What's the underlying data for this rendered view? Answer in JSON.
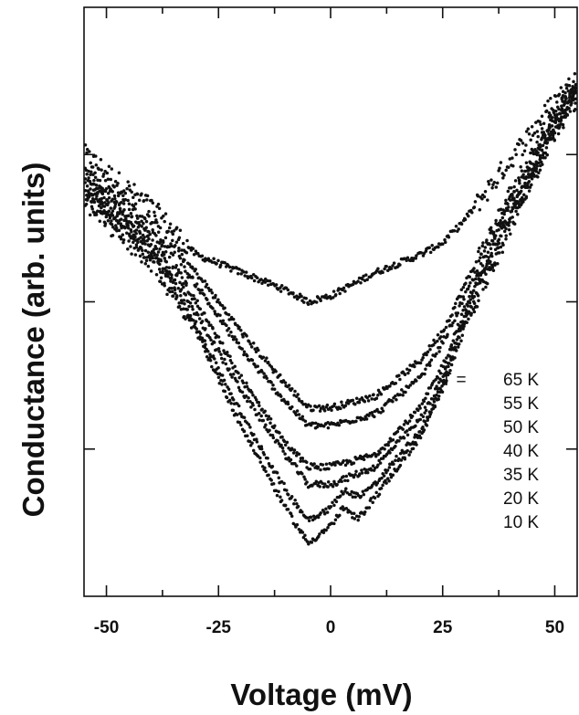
{
  "chart_data": {
    "type": "scatter",
    "xlabel": "Voltage (mV)",
    "ylabel": "Conductance (arb. units)",
    "xlim": [
      -55,
      55
    ],
    "ylim": [
      0,
      100
    ],
    "x_ticks": [
      -50,
      -25,
      0,
      25,
      50
    ],
    "x_tick_labels": [
      "-50",
      "-25",
      "0",
      "25",
      "50"
    ],
    "y_tick_labels_shown": false,
    "grid": false,
    "legend": {
      "position": "right",
      "prefix": "T  =",
      "entries": [
        "65 K",
        "55 K",
        "50 K",
        "40 K",
        "35 K",
        "20 K",
        "10 K"
      ]
    },
    "series": [
      {
        "name": "65 K",
        "x": [
          -55,
          -40,
          -30,
          -20,
          -10,
          -5,
          0,
          10,
          20,
          25,
          30,
          40,
          50,
          55
        ],
        "y": [
          75,
          66,
          58,
          55,
          52,
          50,
          51,
          55,
          58,
          60,
          64,
          74,
          84,
          88
        ]
      },
      {
        "name": "55 K",
        "x": [
          -55,
          -40,
          -30,
          -20,
          -10,
          -5,
          0,
          10,
          20,
          25,
          30,
          40,
          50,
          55
        ],
        "y": [
          72,
          63,
          55,
          45,
          36,
          32,
          32,
          34,
          40,
          45,
          53,
          68,
          82,
          88
        ]
      },
      {
        "name": "50 K",
        "x": [
          -55,
          -40,
          -30,
          -20,
          -10,
          -5,
          0,
          10,
          20,
          25,
          30,
          40,
          50,
          55
        ],
        "y": [
          71,
          62,
          53,
          42,
          33,
          29,
          29,
          31,
          37,
          43,
          51,
          67,
          81,
          87
        ]
      },
      {
        "name": "40 K",
        "x": [
          -55,
          -40,
          -30,
          -20,
          -10,
          -5,
          0,
          10,
          20,
          25,
          30,
          40,
          50,
          55
        ],
        "y": [
          70,
          60,
          50,
          37,
          26,
          22,
          22,
          24,
          32,
          39,
          49,
          66,
          80,
          86
        ]
      },
      {
        "name": "35 K",
        "x": [
          -55,
          -40,
          -30,
          -20,
          -10,
          -5,
          0,
          10,
          20,
          25,
          30,
          40,
          50,
          55
        ],
        "y": [
          69,
          59,
          48,
          35,
          24,
          19,
          19,
          22,
          30,
          37,
          48,
          65,
          80,
          86
        ]
      },
      {
        "name": "20 K",
        "x": [
          -55,
          -40,
          -30,
          -20,
          -10,
          -5,
          0,
          3,
          6,
          10,
          20,
          25,
          30,
          40,
          50,
          55
        ],
        "y": [
          68,
          58,
          46,
          31,
          18,
          13,
          15,
          18,
          17,
          19,
          28,
          36,
          47,
          64,
          79,
          85
        ]
      },
      {
        "name": "10 K",
        "x": [
          -55,
          -40,
          -30,
          -20,
          -10,
          -5,
          0,
          3,
          6,
          10,
          20,
          25,
          30,
          40,
          50,
          55
        ],
        "y": [
          67,
          57,
          45,
          29,
          15,
          9,
          12,
          15,
          13,
          17,
          27,
          35,
          46,
          63,
          79,
          85
        ]
      }
    ]
  }
}
